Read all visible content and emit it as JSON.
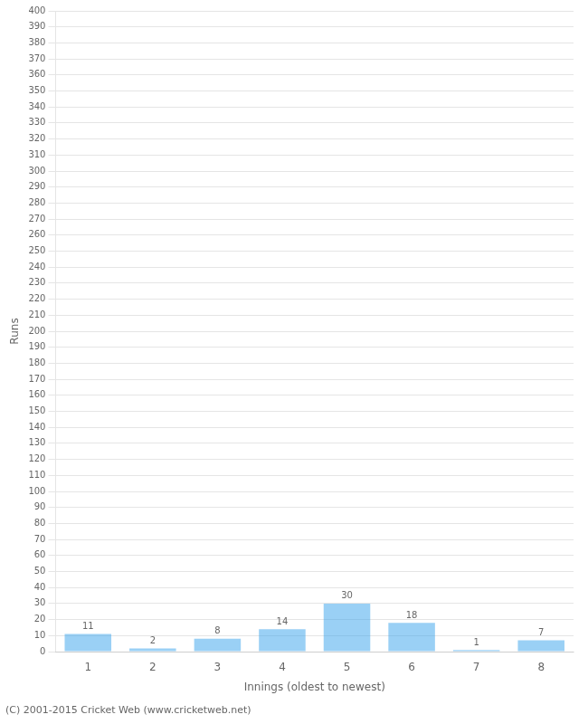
{
  "chart_data": {
    "type": "bar",
    "xlabel": "Innings (oldest to newest)",
    "ylabel": "Runs",
    "annotation": "(C) 2001-2015 Cricket Web (www.cricketweb.net)",
    "categories": [
      "1",
      "2",
      "3",
      "4",
      "5",
      "6",
      "7",
      "8"
    ],
    "values": [
      11,
      2,
      8,
      14,
      30,
      18,
      1,
      7
    ],
    "ylim": [
      0,
      400
    ],
    "yticks": [
      0,
      10,
      20,
      30,
      40,
      50,
      60,
      70,
      80,
      90,
      100,
      110,
      120,
      130,
      140,
      150,
      160,
      170,
      180,
      190,
      200,
      210,
      220,
      230,
      240,
      250,
      260,
      270,
      280,
      290,
      300,
      310,
      320,
      330,
      340,
      350,
      360,
      370,
      380,
      390,
      400
    ],
    "grid": true,
    "data_labels": true
  }
}
